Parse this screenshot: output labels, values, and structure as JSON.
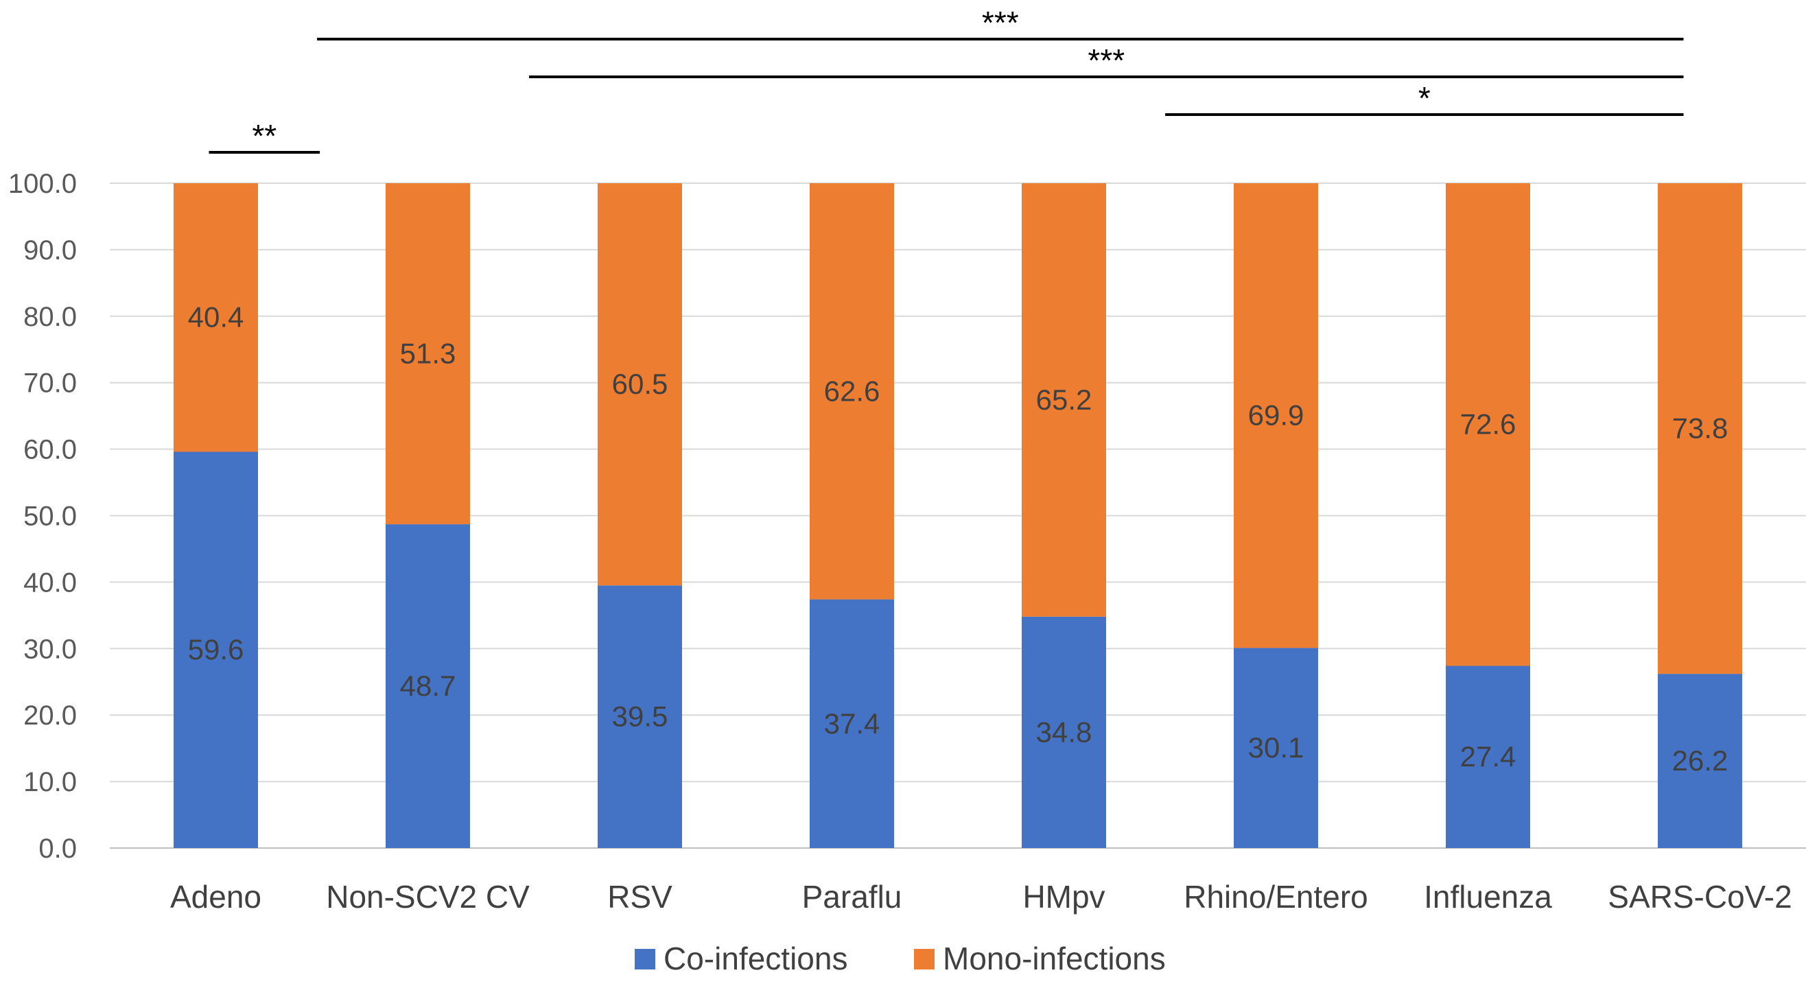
{
  "chart_data": {
    "type": "bar",
    "stacked": true,
    "categories": [
      "Adeno",
      "Non-SCV2 CV",
      "RSV",
      "Paraflu",
      "HMpv",
      "Rhino/Entero",
      "Influenza",
      "SARS-CoV-2"
    ],
    "series": [
      {
        "name": "Co-infections",
        "color": "#4472C4",
        "values": [
          59.6,
          48.7,
          39.5,
          37.4,
          34.8,
          30.1,
          27.4,
          26.2
        ]
      },
      {
        "name": "Mono-infections",
        "color": "#ED7D31",
        "values": [
          40.4,
          51.3,
          60.5,
          62.6,
          65.2,
          69.9,
          72.6,
          73.8
        ]
      }
    ],
    "ylim": [
      0,
      100
    ],
    "yticks": [
      0,
      10,
      20,
      30,
      40,
      50,
      60,
      70,
      80,
      90,
      100
    ],
    "ytick_labels": [
      "0.0",
      "10.0",
      "20.0",
      "30.0",
      "40.0",
      "50.0",
      "60.0",
      "70.0",
      "80.0",
      "90.0",
      "100.0"
    ],
    "grid": true,
    "legend_position": "bottom-center",
    "significance": [
      {
        "from": "Adeno",
        "to": "Non-SCV2 CV",
        "label": "**"
      },
      {
        "from": "Non-SCV2 CV",
        "to": "SARS-CoV-2",
        "label": "***"
      },
      {
        "from": "RSV",
        "to": "SARS-CoV-2",
        "label": "***"
      },
      {
        "from": "Rhino/Entero",
        "to": "SARS-CoV-2",
        "label": "*"
      }
    ],
    "title": "",
    "xlabel": "",
    "ylabel": ""
  }
}
